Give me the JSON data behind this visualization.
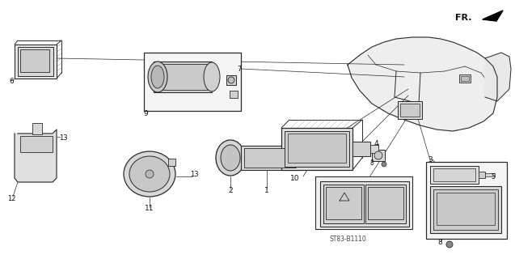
{
  "diagram_code": "ST83-B1110",
  "bg_color": "#ffffff",
  "lc": "#2a2a2a",
  "lc_light": "#666666",
  "fc_part": "#e0e0e0",
  "fc_dark": "#c0c0c0",
  "fc_white": "#f5f5f5",
  "label_fs": 6.0,
  "leader_lw": 0.55
}
